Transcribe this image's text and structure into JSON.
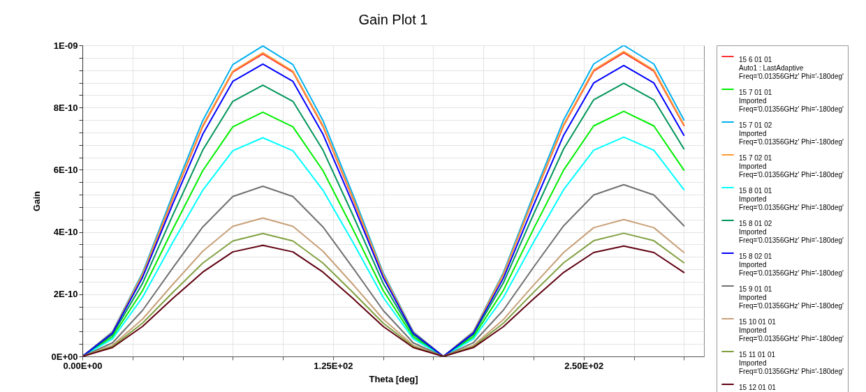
{
  "chart_data": {
    "type": "line",
    "title": "Gain Plot 1",
    "xlabel": "Theta [deg]",
    "ylabel": "Gain",
    "x": [
      0,
      15,
      30,
      45,
      60,
      75,
      90,
      105,
      120,
      135,
      150,
      165,
      180,
      195,
      210,
      225,
      240,
      255,
      270,
      285,
      300
    ],
    "xlim": [
      0,
      310
    ],
    "xticks": [
      {
        "value": 0,
        "label": "0.00E+00"
      },
      {
        "value": 25,
        "label": null
      },
      {
        "value": 50,
        "label": null
      },
      {
        "value": 75,
        "label": null
      },
      {
        "value": 100,
        "label": null
      },
      {
        "value": 125,
        "label": "1.25E+02"
      },
      {
        "value": 150,
        "label": null
      },
      {
        "value": 175,
        "label": null
      },
      {
        "value": 200,
        "label": null
      },
      {
        "value": 225,
        "label": null
      },
      {
        "value": 250,
        "label": "2.50E+02"
      },
      {
        "value": 275,
        "label": null
      },
      {
        "value": 300,
        "label": null
      }
    ],
    "ylim": [
      0,
      1e-09
    ],
    "yticks": [
      {
        "value": 0,
        "label": "0E+00"
      },
      {
        "value": 4e-11,
        "label": null
      },
      {
        "value": 8e-11,
        "label": null
      },
      {
        "value": 1.2e-10,
        "label": null
      },
      {
        "value": 1.6e-10,
        "label": null
      },
      {
        "value": 2e-10,
        "label": "2E-10"
      },
      {
        "value": 2.4e-10,
        "label": null
      },
      {
        "value": 2.8e-10,
        "label": null
      },
      {
        "value": 3.2e-10,
        "label": null
      },
      {
        "value": 3.6e-10,
        "label": null
      },
      {
        "value": 4e-10,
        "label": "4E-10"
      },
      {
        "value": 4.4e-10,
        "label": null
      },
      {
        "value": 4.8e-10,
        "label": null
      },
      {
        "value": 5.2e-10,
        "label": null
      },
      {
        "value": 5.6e-10,
        "label": null
      },
      {
        "value": 6e-10,
        "label": "6E-10"
      },
      {
        "value": 6.4e-10,
        "label": null
      },
      {
        "value": 6.8e-10,
        "label": null
      },
      {
        "value": 7.2e-10,
        "label": null
      },
      {
        "value": 7.6e-10,
        "label": null
      },
      {
        "value": 8e-10,
        "label": "8E-10"
      },
      {
        "value": 8.4e-10,
        "label": null
      },
      {
        "value": 8.8e-10,
        "label": null
      },
      {
        "value": 9.2e-10,
        "label": null
      },
      {
        "value": 9.6e-10,
        "label": null
      },
      {
        "value": 1e-09,
        "label": "1E-09"
      }
    ],
    "grid": true,
    "legend": "right",
    "marker": "none",
    "line_style": "solid",
    "series": [
      {
        "name": "15 6 01 01\nAuto1 : LastAdaptive\nFreq='0.01356GHz' Phi='-180deg'",
        "color": "#ff3333",
        "values": [
          0,
          7.78e-11,
          2.62e-10,
          5.05e-10,
          7.39e-10,
          9.14e-10,
          9.72e-10,
          9.14e-10,
          7.39e-10,
          5.05e-10,
          2.62e-10,
          7.78e-11,
          0,
          7.81e-11,
          2.64e-10,
          5.08e-10,
          7.42e-10,
          9.17e-10,
          9.76e-10,
          9.17e-10,
          7.42e-10
        ]
      },
      {
        "name": "15 7 01 01\nImported\nFreq='0.01356GHz' Phi='-180deg'",
        "color": "#00ee00",
        "values": [
          0,
          6.28e-11,
          2.12e-10,
          4.08e-10,
          5.97e-10,
          7.38e-10,
          7.85e-10,
          7.38e-10,
          5.97e-10,
          4.08e-10,
          2.12e-10,
          6.28e-11,
          0,
          6.3e-11,
          2.13e-10,
          4.1e-10,
          5.99e-10,
          7.41e-10,
          7.88e-10,
          7.41e-10,
          5.99e-10
        ]
      },
      {
        "name": "15 7 01 02\nImported\nFreq='0.01356GHz' Phi='-180deg'",
        "color": "#00b0f0",
        "values": [
          0,
          7.98e-11,
          2.69e-10,
          5.19e-10,
          7.58e-10,
          9.38e-10,
          9.98e-10,
          9.38e-10,
          7.58e-10,
          5.19e-10,
          2.69e-10,
          7.98e-11,
          0,
          8e-11,
          2.7e-10,
          5.2e-10,
          7.6e-10,
          9.4e-10,
          1e-09,
          9.4e-10,
          7.6e-10
        ]
      },
      {
        "name": "15 7 02 01\nImported\nFreq='0.01356GHz' Phi='-180deg'",
        "color": "#ff9933",
        "values": [
          0,
          7.81e-11,
          2.64e-10,
          5.08e-10,
          7.42e-10,
          9.17e-10,
          9.76e-10,
          9.17e-10,
          7.42e-10,
          5.08e-10,
          2.64e-10,
          7.81e-11,
          0,
          7.84e-11,
          2.65e-10,
          5.1e-10,
          7.45e-10,
          9.21e-10,
          9.8e-10,
          9.21e-10,
          7.45e-10
        ]
      },
      {
        "name": "15 8 01 01\nImported\nFreq='0.01356GHz' Phi='-180deg'",
        "color": "#00ffff",
        "values": [
          0,
          5.62e-11,
          1.9e-10,
          3.66e-10,
          5.34e-10,
          6.61e-10,
          7.03e-10,
          6.61e-10,
          5.34e-10,
          3.66e-10,
          1.9e-10,
          5.62e-11,
          0,
          5.64e-11,
          1.9e-10,
          3.67e-10,
          5.36e-10,
          6.63e-10,
          7.05e-10,
          6.63e-10,
          5.36e-10
        ]
      },
      {
        "name": "15 8 01 02\nImported\nFreq='0.01356GHz' Phi='-180deg'",
        "color": "#00955a",
        "values": [
          0,
          6.98e-11,
          2.35e-10,
          4.53e-10,
          6.63e-10,
          8.2e-10,
          8.72e-10,
          8.2e-10,
          6.63e-10,
          4.53e-10,
          2.35e-10,
          6.98e-11,
          0,
          7.02e-11,
          2.37e-10,
          4.57e-10,
          6.67e-10,
          8.25e-10,
          8.78e-10,
          8.25e-10,
          6.67e-10
        ]
      },
      {
        "name": "15 8 02 01\nImported\nFreq='0.01356GHz' Phi='-180deg'",
        "color": "#0000ff",
        "values": [
          0,
          7.52e-11,
          2.54e-10,
          4.89e-10,
          7.14e-10,
          8.84e-10,
          9.4e-10,
          8.84e-10,
          7.14e-10,
          4.89e-10,
          2.54e-10,
          7.52e-11,
          0,
          7.48e-11,
          2.52e-10,
          4.86e-10,
          7.11e-10,
          8.79e-10,
          9.35e-10,
          8.79e-10,
          7.11e-10
        ]
      },
      {
        "name": "15 9 01 01\nImported\nFreq='0.01356GHz' Phi='-180deg'",
        "color": "#707070",
        "values": [
          0,
          4.38e-11,
          1.48e-10,
          2.84e-10,
          4.16e-10,
          5.14e-10,
          5.47e-10,
          5.14e-10,
          4.16e-10,
          2.84e-10,
          1.48e-10,
          4.38e-11,
          0,
          4.42e-11,
          1.49e-10,
          2.87e-10,
          4.2e-10,
          5.19e-10,
          5.52e-10,
          5.19e-10,
          4.2e-10
        ]
      },
      {
        "name": "15 10 01 01\nImported\nFreq='0.01356GHz' Phi='-180deg'",
        "color": "#c8a078",
        "values": [
          0,
          3.56e-11,
          1.2e-10,
          2.31e-10,
          3.38e-10,
          4.18e-10,
          4.45e-10,
          4.18e-10,
          3.38e-10,
          2.31e-10,
          1.2e-10,
          3.56e-11,
          0,
          3.52e-11,
          1.19e-10,
          2.29e-10,
          3.34e-10,
          4.14e-10,
          4.4e-10,
          4.14e-10,
          3.34e-10
        ]
      },
      {
        "name": "15 11 01 01\nImported\nFreq='0.01356GHz' Phi='-180deg'",
        "color": "#80a040",
        "values": [
          0,
          3.16e-11,
          1.07e-10,
          2.05e-10,
          3e-10,
          3.71e-10,
          3.95e-10,
          3.71e-10,
          3e-10,
          2.05e-10,
          1.07e-10,
          3.16e-11,
          0,
          3.17e-11,
          1.07e-10,
          2.06e-10,
          3.01e-10,
          3.72e-10,
          3.96e-10,
          3.72e-10,
          3.01e-10
        ]
      },
      {
        "name": "15 12 01 01",
        "color": "#600010",
        "values": [
          0,
          2.86e-11,
          9.64e-11,
          1.86e-10,
          2.71e-10,
          3.36e-10,
          3.57e-10,
          3.36e-10,
          2.71e-10,
          1.86e-10,
          9.64e-11,
          2.86e-11,
          0,
          2.84e-11,
          9.59e-11,
          1.85e-10,
          2.7e-10,
          3.34e-10,
          3.55e-10,
          3.34e-10,
          2.7e-10
        ]
      }
    ]
  }
}
